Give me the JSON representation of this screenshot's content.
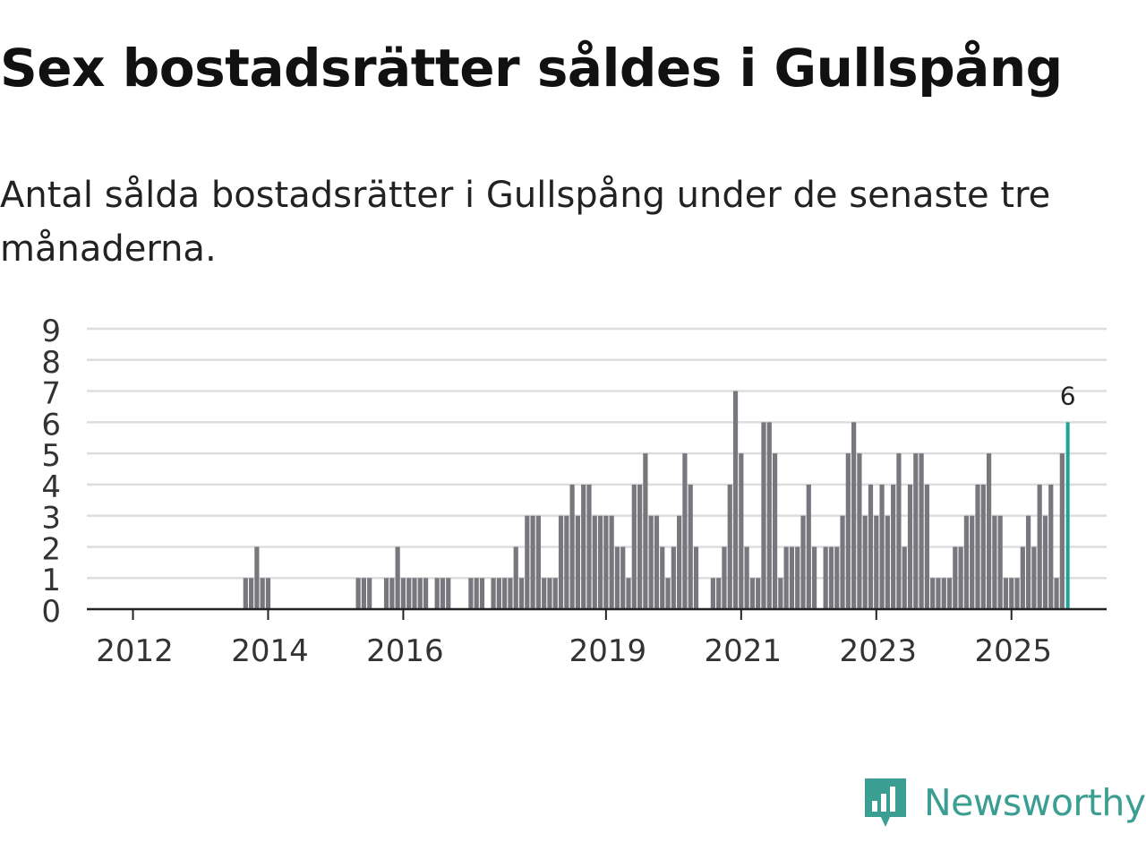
{
  "title": "Sex bostadsrätter såldes i Gullspång",
  "subtitle": "Antal sålda bostadsrätter i Gullspång under de senaste tre månaderna.",
  "brand": {
    "name": "Newsworthy",
    "icon": "newsworthy-logo-icon",
    "color": "#3a9e93"
  },
  "chart_data": {
    "type": "bar",
    "title": "Sex bostadsrätter såldes i Gullspång",
    "xlabel": "",
    "ylabel": "",
    "ylim": [
      0,
      9
    ],
    "yticks": [
      0,
      1,
      2,
      3,
      4,
      5,
      6,
      7,
      8,
      9
    ],
    "grid": true,
    "bar_color": "#77777d",
    "highlight_color": "#1aa396",
    "start": {
      "year": 2011,
      "month": 7
    },
    "xticks": [
      {
        "label": "2012",
        "index": 6
      },
      {
        "label": "2014",
        "index": 30
      },
      {
        "label": "2016",
        "index": 54
      },
      {
        "label": "2019",
        "index": 90
      },
      {
        "label": "2021",
        "index": 114
      },
      {
        "label": "2023",
        "index": 138
      },
      {
        "label": "2025",
        "index": 162
      }
    ],
    "values": [
      0,
      0,
      0,
      0,
      0,
      0,
      0,
      0,
      0,
      0,
      0,
      0,
      0,
      0,
      0,
      0,
      0,
      0,
      0,
      0,
      0,
      0,
      0,
      0,
      0,
      0,
      1,
      1,
      2,
      1,
      1,
      0,
      0,
      0,
      0,
      0,
      0,
      0,
      0,
      0,
      0,
      0,
      0,
      0,
      0,
      0,
      1,
      1,
      1,
      0,
      0,
      1,
      1,
      2,
      1,
      1,
      1,
      1,
      1,
      0,
      1,
      1,
      1,
      0,
      0,
      0,
      1,
      1,
      1,
      0,
      1,
      1,
      1,
      1,
      2,
      1,
      3,
      3,
      3,
      1,
      1,
      1,
      3,
      3,
      4,
      3,
      4,
      4,
      3,
      3,
      3,
      3,
      2,
      2,
      1,
      4,
      4,
      5,
      3,
      3,
      2,
      1,
      2,
      3,
      5,
      4,
      2,
      0,
      0,
      1,
      1,
      2,
      4,
      7,
      5,
      2,
      1,
      1,
      6,
      6,
      5,
      1,
      2,
      2,
      2,
      3,
      4,
      2,
      0,
      2,
      2,
      2,
      3,
      5,
      6,
      5,
      3,
      4,
      3,
      4,
      3,
      4,
      5,
      2,
      4,
      5,
      5,
      4,
      1,
      1,
      1,
      1,
      2,
      2,
      3,
      3,
      4,
      4,
      5,
      3,
      3,
      1,
      1,
      1,
      2,
      3,
      2,
      4,
      3,
      4,
      1,
      5,
      6
    ],
    "highlight_index": 172,
    "annotation": {
      "label": "6",
      "value": 6
    }
  }
}
